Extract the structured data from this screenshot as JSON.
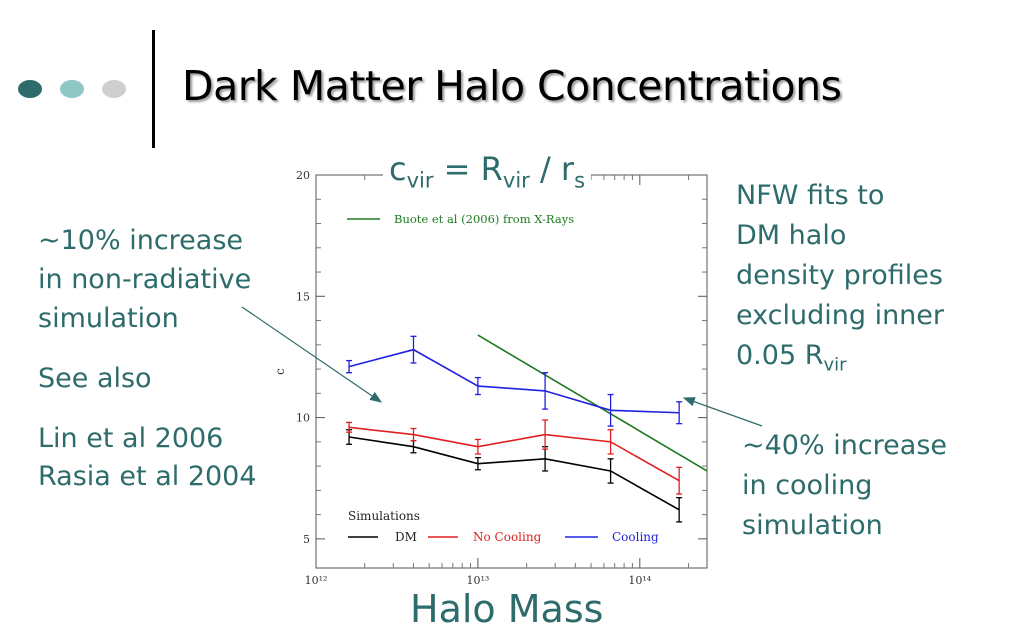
{
  "slide": {
    "title": "Dark Matter Halo Concentrations",
    "formula": {
      "c": "c",
      "c_sub": "vir",
      "eq": "= R",
      "r_sub": "vir",
      "slash": "/ r",
      "s_sub": "s"
    },
    "left_notes": {
      "increase_lines": [
        "~10% increase",
        "in non-radiative",
        "simulation"
      ],
      "see_also": "See also",
      "refs": [
        "Lin et al 2006",
        "Rasia et al 2004"
      ]
    },
    "right_notes": {
      "nfw_lines": [
        "NFW fits to",
        "DM halo",
        "density profiles",
        "excluding inner"
      ],
      "nfw_last": "0.05 R",
      "nfw_last_sub": "vir",
      "cooling_lines": [
        "~40% increase",
        "in cooling",
        "simulation"
      ]
    },
    "xlabel": "Halo Mass",
    "colors": {
      "teal": "#2e6b6b",
      "dots": [
        "#2e6b6b",
        "#8fc6c6",
        "#cfcfcf"
      ]
    }
  },
  "chart_data": {
    "type": "line",
    "ylabel": "c",
    "xscale": "log",
    "xlim": [
      1000000000000.0,
      260000000000000.0
    ],
    "ylim": [
      3.8,
      20
    ],
    "x_ticks": [
      {
        "v": 1000000000000.0,
        "label": "10¹²"
      },
      {
        "v": 10000000000000.0,
        "label": "10¹³"
      },
      {
        "v": 100000000000000.0,
        "label": "10¹⁴"
      }
    ],
    "y_ticks": [
      5,
      10,
      15,
      20
    ],
    "legend_top": {
      "name": "Buote et al (2006) from X-Rays",
      "color": "#1f7a1f"
    },
    "legend_bottom_title": "Simulations",
    "series": [
      {
        "name": "DM",
        "color": "#000000",
        "x": [
          1600000000000.0,
          4000000000000.0,
          10000000000000.0,
          26000000000000.0,
          66000000000000.0,
          175000000000000.0
        ],
        "y": [
          9.2,
          8.8,
          8.1,
          8.3,
          7.8,
          6.2
        ],
        "err": [
          0.3,
          0.25,
          0.25,
          0.5,
          0.5,
          0.5
        ]
      },
      {
        "name": "No Cooling",
        "color": "#e02020",
        "x": [
          1600000000000.0,
          4000000000000.0,
          10000000000000.0,
          26000000000000.0,
          66000000000000.0,
          175000000000000.0
        ],
        "y": [
          9.6,
          9.3,
          8.8,
          9.3,
          9.0,
          7.4
        ],
        "err": [
          0.2,
          0.25,
          0.3,
          0.6,
          0.5,
          0.55
        ]
      },
      {
        "name": "Cooling",
        "color": "#2020e0",
        "x": [
          1600000000000.0,
          4000000000000.0,
          10000000000000.0,
          26000000000000.0,
          66000000000000.0,
          175000000000000.0
        ],
        "y": [
          12.1,
          12.8,
          11.3,
          11.1,
          10.3,
          10.2
        ],
        "err": [
          0.25,
          0.55,
          0.35,
          0.75,
          0.65,
          0.45
        ]
      }
    ],
    "buote_line": {
      "x": [
        10000000000000.0,
        260000000000000.0
      ],
      "y": [
        13.4,
        7.8
      ]
    }
  }
}
